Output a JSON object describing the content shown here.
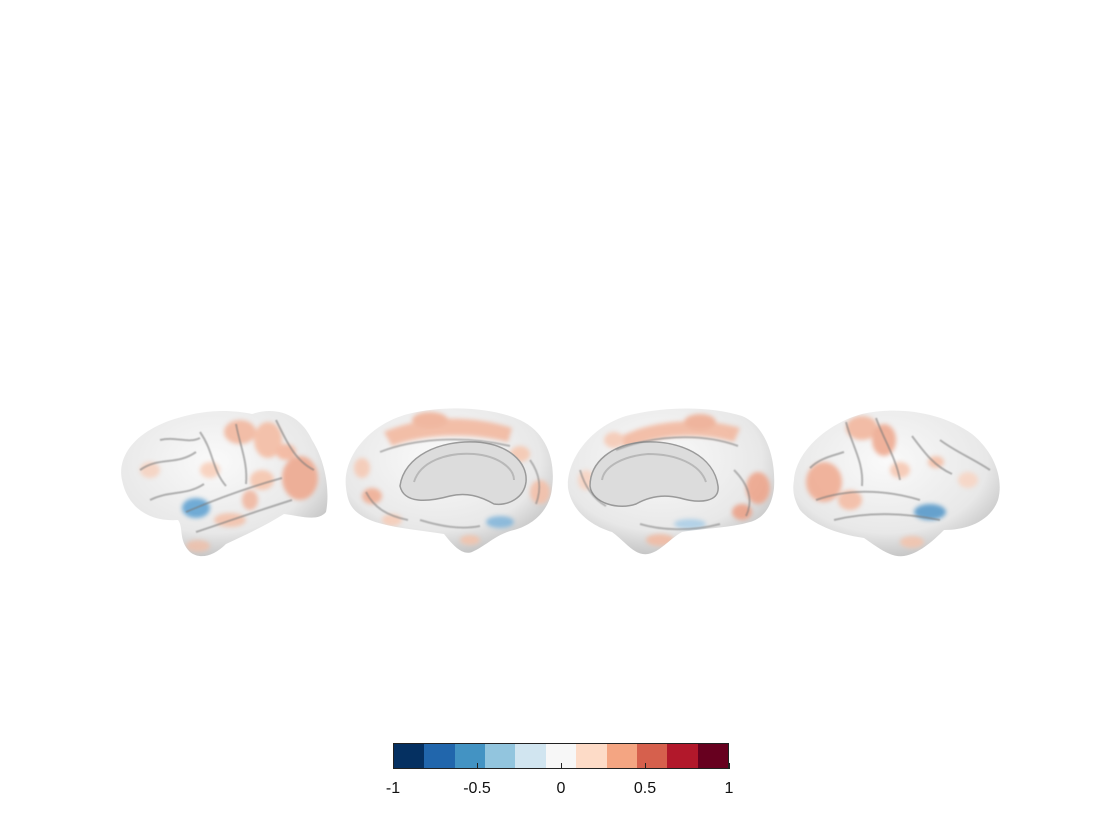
{
  "figure": {
    "views": [
      {
        "name": "left-lateral"
      },
      {
        "name": "left-medial"
      },
      {
        "name": "right-medial"
      },
      {
        "name": "right-lateral"
      }
    ]
  },
  "colorbar": {
    "min": -1,
    "max": 1,
    "segments": [
      "#053061",
      "#2166ac",
      "#4393c3",
      "#92c5de",
      "#d1e5f0",
      "#f7f7f7",
      "#fddbc7",
      "#f4a582",
      "#d6604d",
      "#b2182b",
      "#67001f"
    ],
    "ticks": [
      {
        "value": -1,
        "label": "-1"
      },
      {
        "value": -0.5,
        "label": "-0.5"
      },
      {
        "value": 0,
        "label": "0"
      },
      {
        "value": 0.5,
        "label": "0.5"
      },
      {
        "value": 1,
        "label": "1"
      }
    ]
  }
}
